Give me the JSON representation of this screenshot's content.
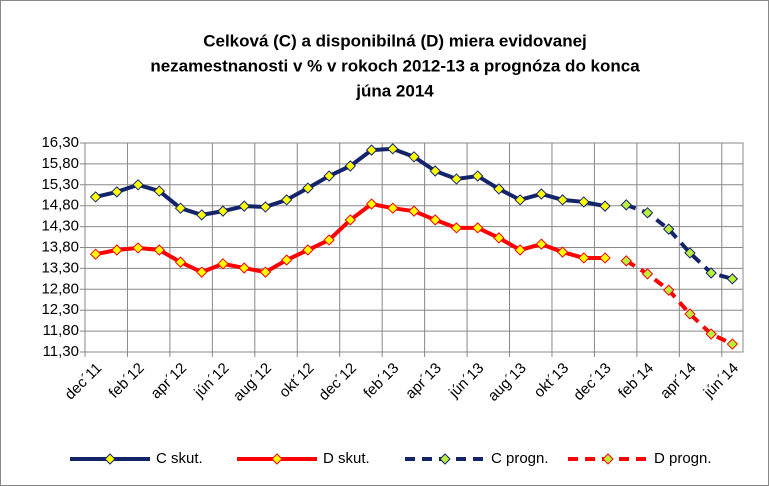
{
  "chart_data": {
    "type": "line",
    "title_lines": [
      "Celková (C)  a disponibilná (D)  miera evidovanej",
      "nezamestnanosti  v % v rokoch  2012-13  a prognóza do konca",
      "júna 2014"
    ],
    "categories": [
      "dec´11",
      null,
      "feb´12",
      null,
      "apr´12",
      null,
      "jún´12",
      null,
      "aug´12",
      null,
      "okt´12",
      null,
      "dec´12",
      null,
      "feb´13",
      null,
      "apr´13",
      null,
      "jún´13",
      null,
      "aug´13",
      null,
      "okt´13",
      null,
      "dec´13",
      null,
      "feb´14",
      null,
      "apr´14",
      null,
      "jún´14"
    ],
    "series": [
      {
        "name": "C skut.",
        "color": "#14246b",
        "marker_color": "#ffff00",
        "dashed": false,
        "values": [
          15.01,
          15.13,
          15.3,
          15.15,
          14.74,
          14.58,
          14.67,
          14.79,
          14.77,
          14.94,
          15.22,
          15.51,
          15.75,
          16.13,
          16.16,
          15.97,
          15.63,
          15.44,
          15.51,
          15.2,
          14.94,
          15.08,
          14.94,
          14.89,
          14.79,
          null,
          null,
          null,
          null,
          null,
          null
        ]
      },
      {
        "name": "D skut.",
        "color": "#ff0000",
        "marker_color": "#ffff00",
        "dashed": false,
        "values": [
          13.64,
          13.74,
          13.79,
          13.74,
          13.45,
          13.21,
          13.41,
          13.31,
          13.21,
          13.5,
          13.74,
          13.98,
          14.46,
          14.84,
          14.74,
          14.67,
          14.46,
          14.27,
          14.27,
          14.03,
          13.74,
          13.88,
          13.69,
          13.55,
          13.55,
          null,
          null,
          null,
          null,
          null,
          null
        ]
      },
      {
        "name": "C progn.",
        "color": "#14246b",
        "marker_color": "#b8f03c",
        "dashed": true,
        "values": [
          null,
          null,
          null,
          null,
          null,
          null,
          null,
          null,
          null,
          null,
          null,
          null,
          null,
          null,
          null,
          null,
          null,
          null,
          null,
          null,
          null,
          null,
          null,
          null,
          null,
          14.82,
          14.63,
          14.24,
          13.67,
          13.19,
          13.05
        ]
      },
      {
        "name": "D progn.",
        "color": "#ff0000",
        "marker_color": "#b8f03c",
        "dashed": true,
        "values": [
          null,
          null,
          null,
          null,
          null,
          null,
          null,
          null,
          null,
          null,
          null,
          null,
          null,
          null,
          null,
          null,
          null,
          null,
          null,
          null,
          null,
          null,
          null,
          null,
          null,
          13.48,
          13.17,
          12.78,
          12.21,
          11.73,
          11.49
        ]
      }
    ],
    "ylim": [
      11.3,
      16.3
    ],
    "yticks": [
      {
        "value": 11.3,
        "label": "11,30"
      },
      {
        "value": 11.8,
        "label": "11,80"
      },
      {
        "value": 12.3,
        "label": "12,30"
      },
      {
        "value": 12.8,
        "label": "12,80"
      },
      {
        "value": 13.3,
        "label": "13,30"
      },
      {
        "value": 13.8,
        "label": "13,80"
      },
      {
        "value": 14.3,
        "label": "14,30"
      },
      {
        "value": 14.8,
        "label": "14,80"
      },
      {
        "value": 15.3,
        "label": "15,30"
      },
      {
        "value": 15.8,
        "label": "15,80"
      },
      {
        "value": 16.3,
        "label": "16,30"
      }
    ],
    "grid": true,
    "legend": "bottom"
  }
}
